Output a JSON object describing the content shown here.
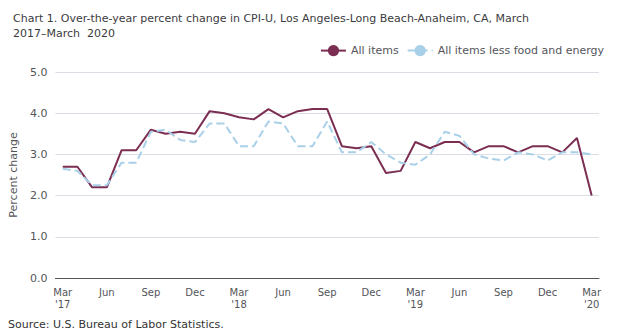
{
  "chart_data": {
    "type": "line",
    "title": "Chart 1. Over-the-year percent change in CPI-U, Los Angeles-Long Beach-Anaheim, CA, March\n2017–March  2020",
    "y_label": "Percent change",
    "annotations": [
      "Source: U.S. Bureau of Labor Statistics."
    ],
    "categories": [
      "Mar\n'17",
      null,
      null,
      "Jun",
      null,
      null,
      "Sep",
      null,
      null,
      "Dec",
      null,
      null,
      "Mar\n'18",
      null,
      null,
      "Jun",
      null,
      null,
      "Sep",
      null,
      null,
      "Dec",
      null,
      null,
      "Mar\n'19",
      null,
      null,
      "Jun",
      null,
      null,
      "Sep",
      null,
      null,
      "Dec",
      null,
      null,
      "Mar\n'20"
    ],
    "series": [
      {
        "name": "All items",
        "color": "#7b2d52",
        "line_style": "solid",
        "values": [
          2.7,
          2.7,
          2.2,
          2.2,
          3.1,
          3.1,
          3.6,
          3.5,
          3.55,
          3.5,
          4.05,
          4.0,
          3.9,
          3.85,
          4.1,
          3.9,
          4.05,
          4.1,
          4.1,
          3.2,
          3.15,
          3.2,
          2.55,
          2.6,
          3.3,
          3.15,
          3.3,
          3.3,
          3.05,
          3.2,
          3.2,
          3.05,
          3.2,
          3.2,
          3.05,
          3.4,
          2.0
        ]
      },
      {
        "name": "All items less food and energy",
        "color": "#a8d0e8",
        "line_style": "dashed",
        "values": [
          2.65,
          2.6,
          2.25,
          2.25,
          2.8,
          2.8,
          3.55,
          3.6,
          3.35,
          3.3,
          3.75,
          3.75,
          3.2,
          3.2,
          3.8,
          3.75,
          3.2,
          3.2,
          3.8,
          3.05,
          3.05,
          3.3,
          3.0,
          2.8,
          2.75,
          3.0,
          3.55,
          3.45,
          3.0,
          2.9,
          2.85,
          3.05,
          3.0,
          2.85,
          3.05,
          3.05,
          3.0
        ]
      }
    ],
    "ylim": [
      0.0,
      5.0
    ],
    "yticks": [
      {
        "value": 0,
        "label": "0.0"
      },
      {
        "value": 1,
        "label": "1.0"
      },
      {
        "value": 2,
        "label": "2.0"
      },
      {
        "value": 3,
        "label": "3.0"
      },
      {
        "value": 4,
        "label": "4.0"
      },
      {
        "value": 5,
        "label": "5.0"
      }
    ],
    "grid": true,
    "legend": "upper right"
  }
}
